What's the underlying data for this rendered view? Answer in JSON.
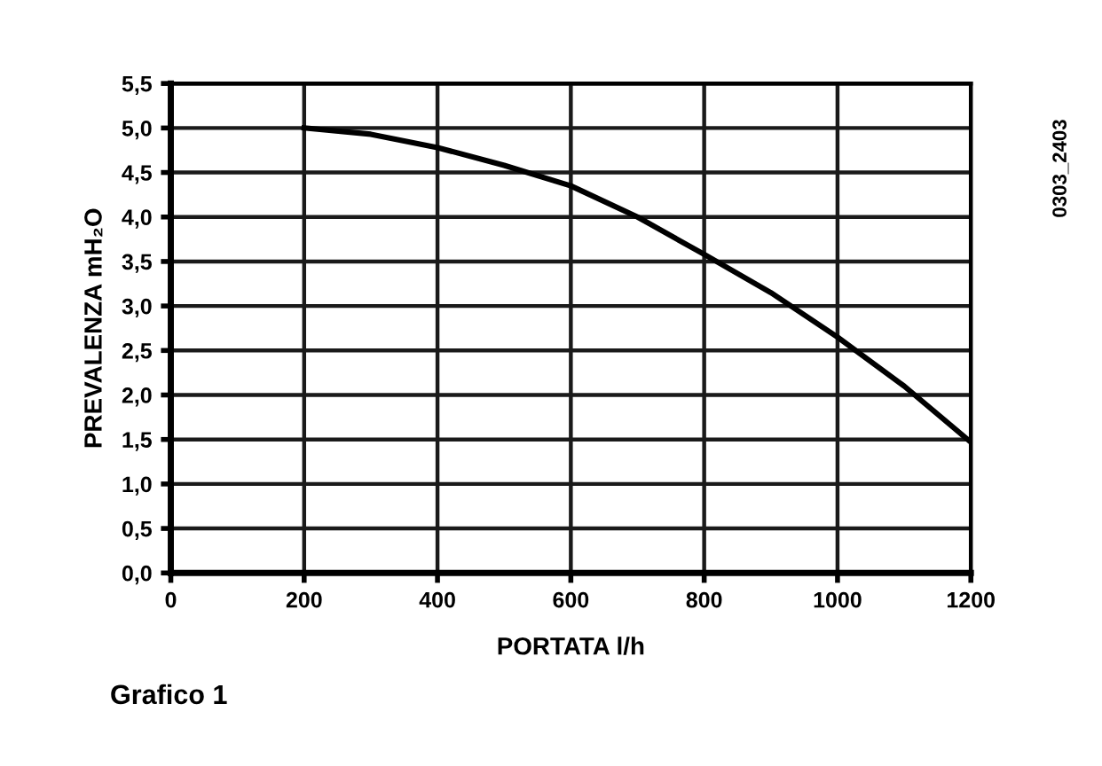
{
  "chart_data": {
    "type": "line",
    "xlabel": "PORTATA l/h",
    "ylabel": "PREVALENZA mH₂O",
    "x": [
      200,
      300,
      400,
      500,
      600,
      700,
      800,
      900,
      1000,
      1100,
      1200
    ],
    "series": [
      {
        "color": "#000000",
        "values": [
          5.0,
          4.93,
          4.78,
          4.58,
          4.35,
          4.0,
          3.58,
          3.15,
          2.65,
          2.1,
          1.47
        ]
      }
    ],
    "xlim": [
      0,
      1200
    ],
    "xticks": [
      0,
      200,
      400,
      600,
      800,
      1000,
      1200
    ],
    "ylim": [
      0,
      5.5
    ],
    "yticks": [
      {
        "value": 0,
        "label": "0,0"
      },
      {
        "value": 0.5,
        "label": "0,5"
      },
      {
        "value": 1,
        "label": "1,0"
      },
      {
        "value": 1.5,
        "label": "1,5"
      },
      {
        "value": 2,
        "label": "2,0"
      },
      {
        "value": 2.5,
        "label": "2,5"
      },
      {
        "value": 3,
        "label": "3,0"
      },
      {
        "value": 3.5,
        "label": "3,5"
      },
      {
        "value": 4,
        "label": "4,0"
      },
      {
        "value": 4.5,
        "label": "4,5"
      },
      {
        "value": 5,
        "label": "5,0"
      },
      {
        "value": 5.5,
        "label": "5,5"
      }
    ],
    "grid": true,
    "marker": "none",
    "line_style": "solid",
    "annotations": [
      "Grafico 1",
      "0303_2403"
    ]
  }
}
